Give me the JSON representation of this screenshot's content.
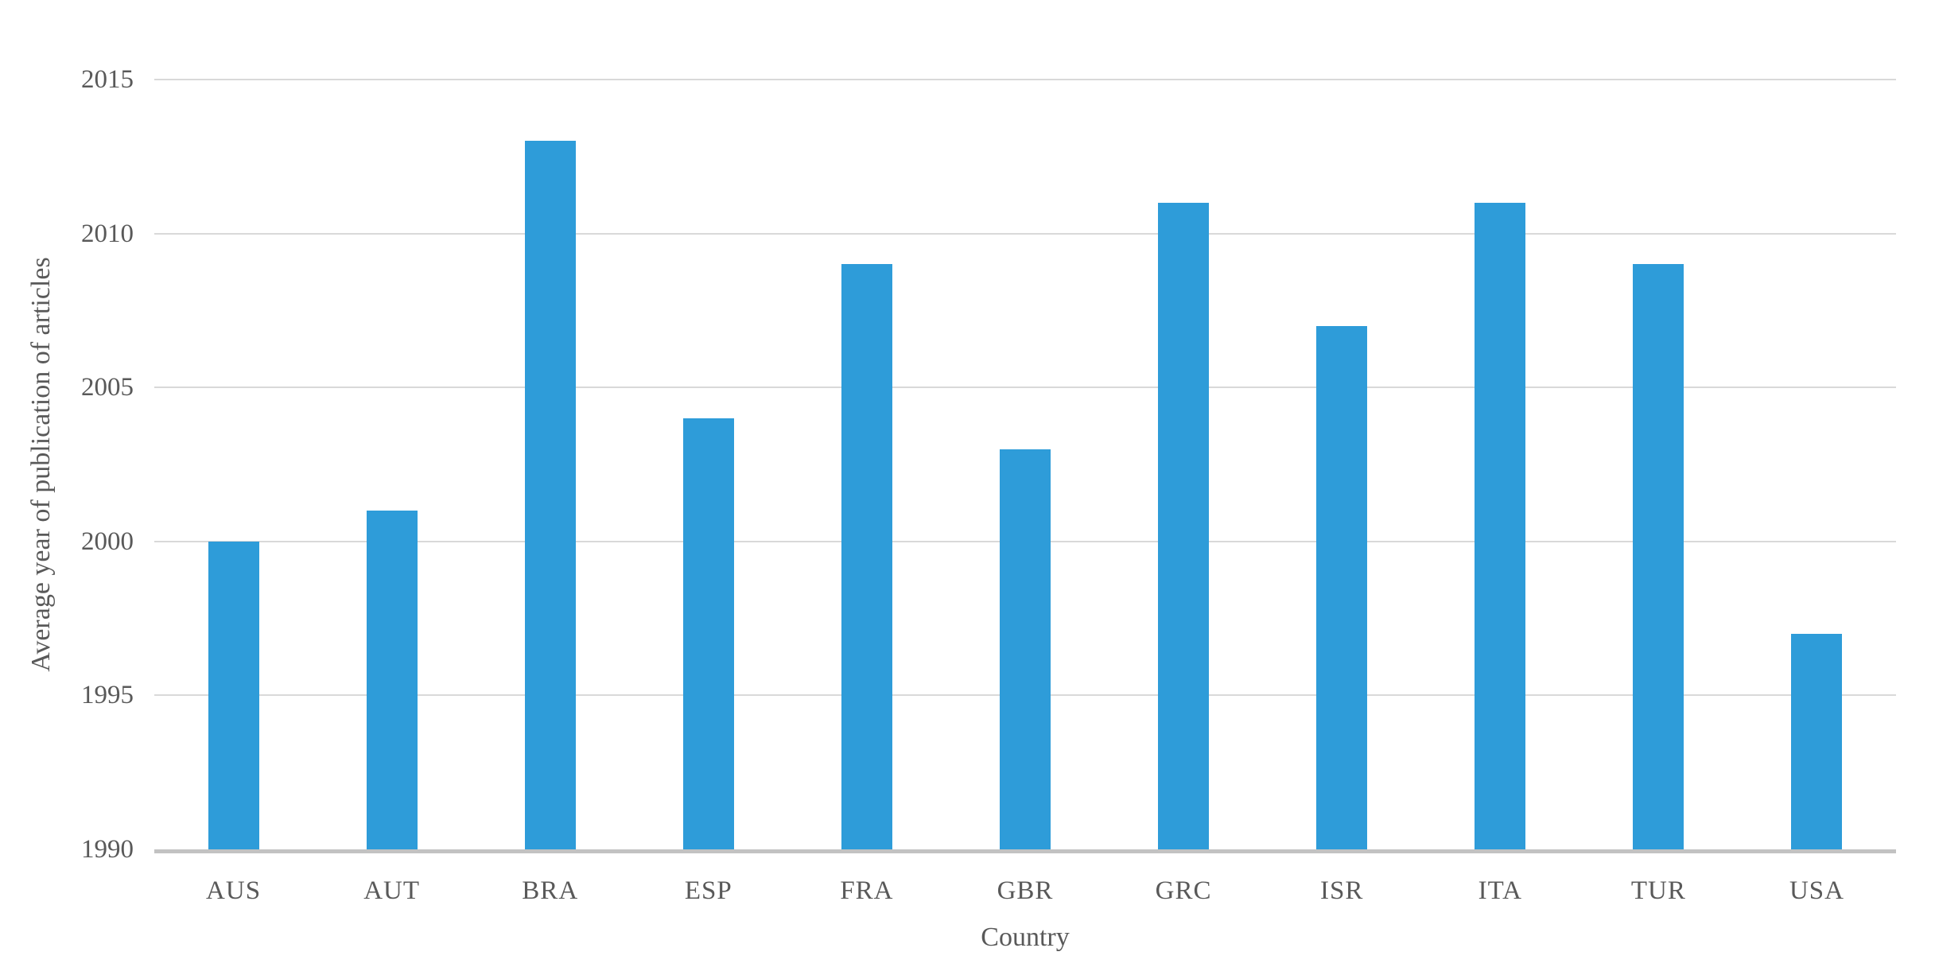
{
  "chart_data": {
    "type": "bar",
    "title": "",
    "categories": [
      "AUS",
      "AUT",
      "BRA",
      "ESP",
      "FRA",
      "GBR",
      "GRC",
      "ISR",
      "ITA",
      "TUR",
      "USA"
    ],
    "values": [
      2000,
      2001,
      2013,
      2004,
      2009,
      2003,
      2011,
      2007,
      2011,
      2009,
      1997
    ],
    "series_name": "Average year of publication of articles",
    "xlabel": "Country",
    "ylabel": "Average year of publication of articles",
    "ylim": [
      1990,
      2015
    ],
    "yticks": [
      1990,
      1995,
      2000,
      2005,
      2010,
      2015
    ],
    "grid": true,
    "legend": false,
    "colors": {
      "bar": "#2e9cd9",
      "gridline": "#d9d9d9",
      "baseline": "#c2c2c2",
      "text": "#595959",
      "background": "#ffffff"
    }
  }
}
